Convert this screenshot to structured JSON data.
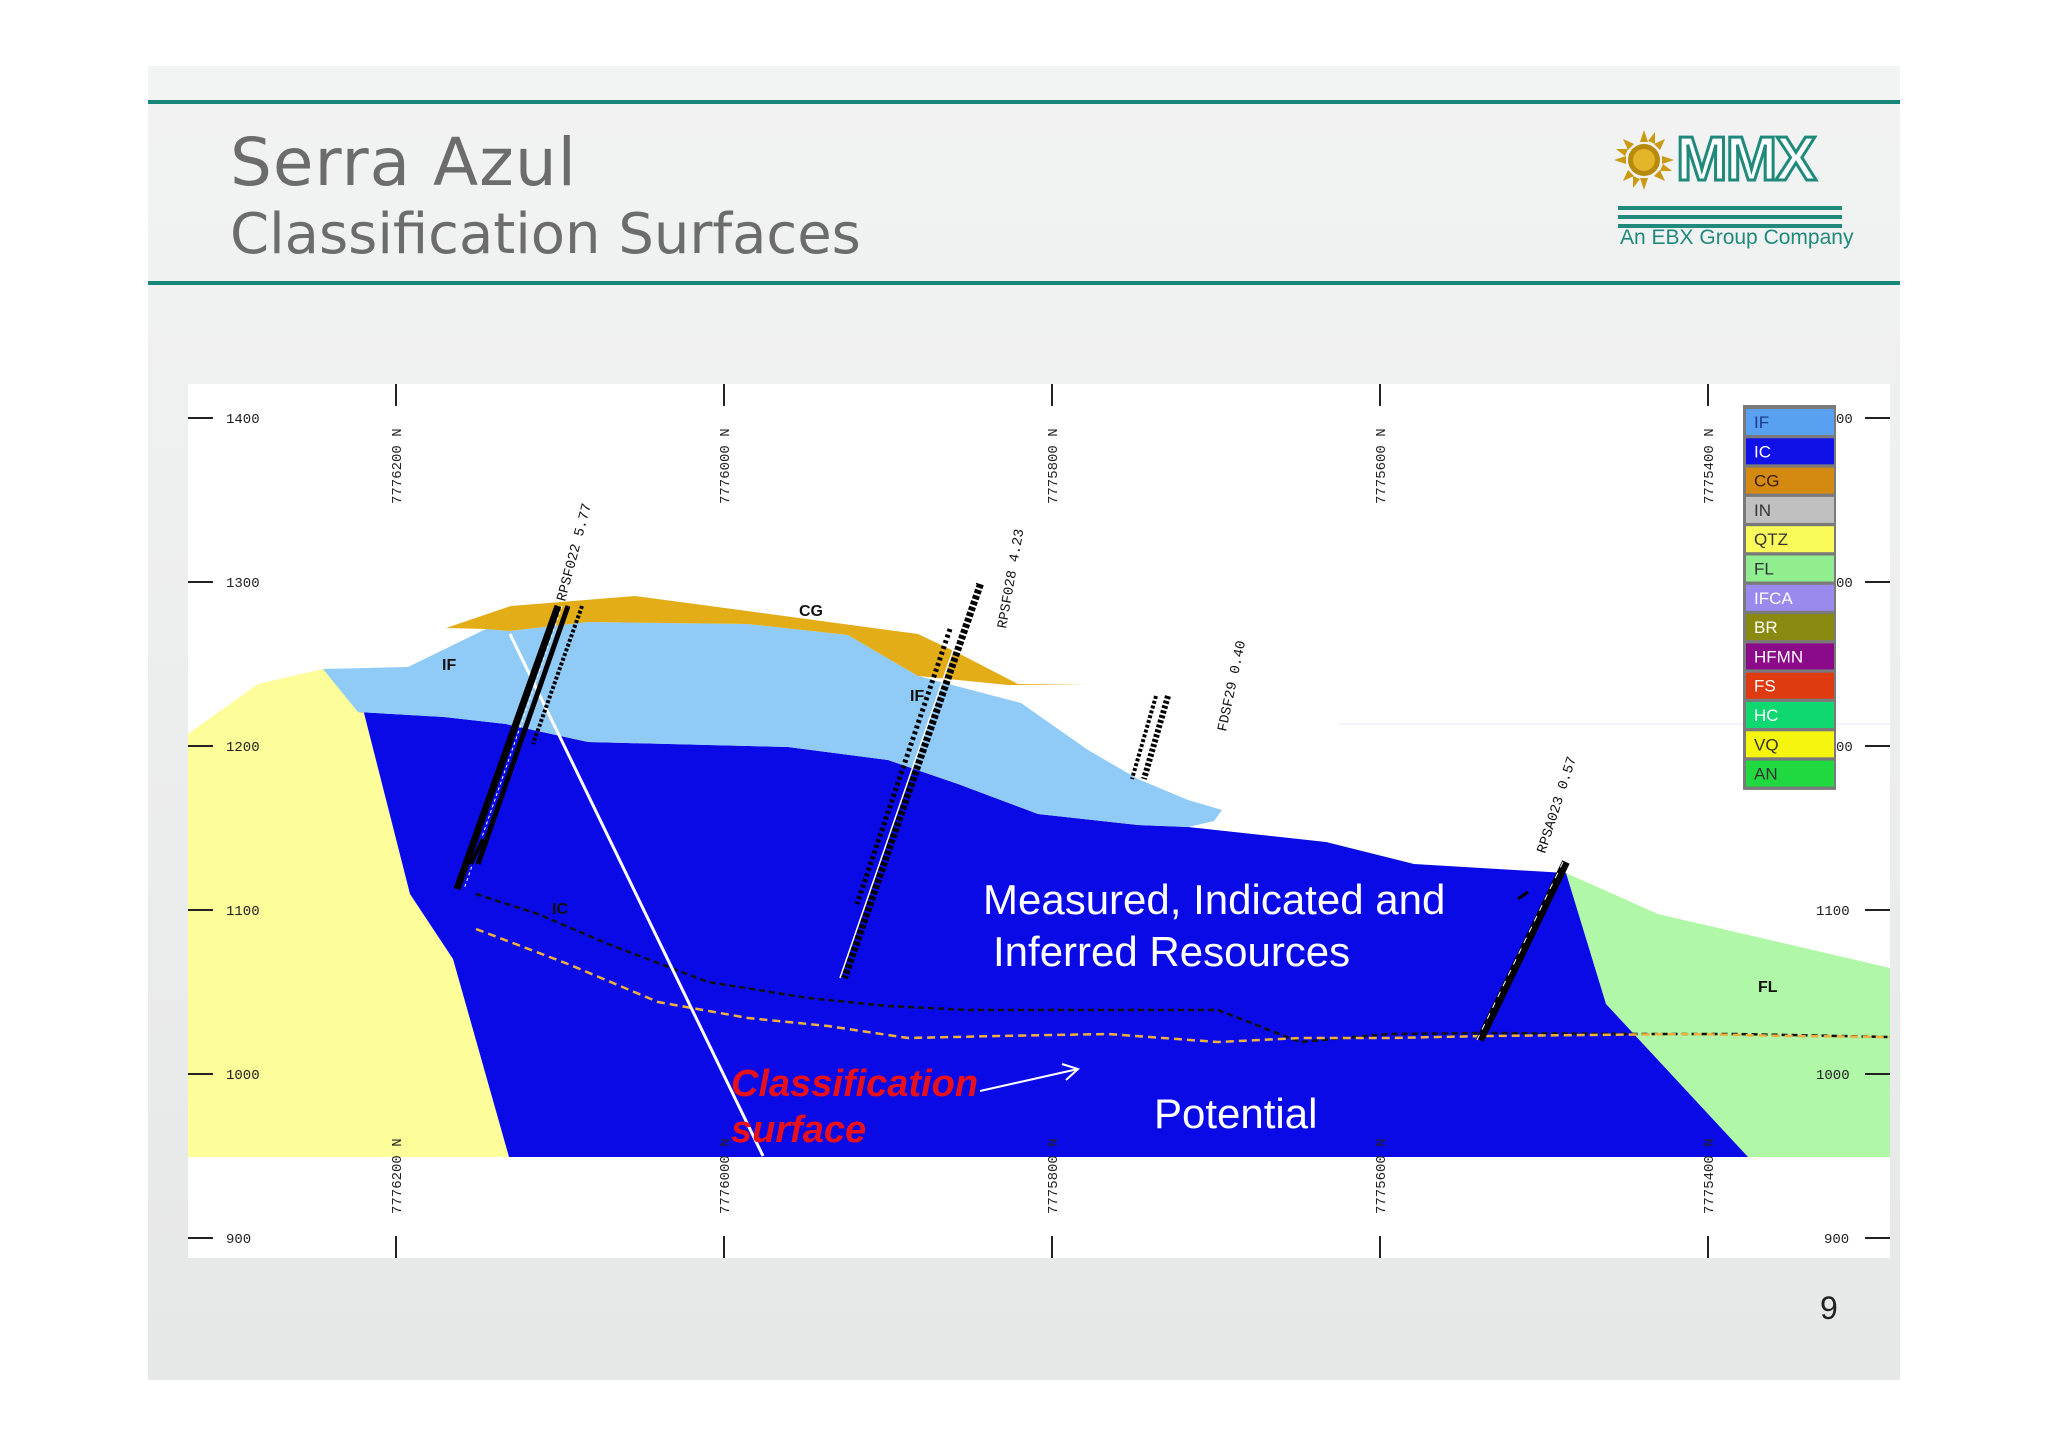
{
  "header": {
    "title": "Serra Azul",
    "subtitle": "Classification Surfaces",
    "logo_text": "MMX",
    "logo_tagline": "An EBX Group Company"
  },
  "page_number": "9",
  "section": {
    "elevation_labels_left": [
      "1400",
      "1300",
      "1200",
      "1100",
      "1000",
      "900"
    ],
    "elevation_labels_right": [
      "00",
      "00",
      "00",
      "1100",
      "1000",
      "900"
    ],
    "northing_labels": [
      "7776200 N",
      "7776000 N",
      "7775800 N",
      "7775600 N",
      "7775400 N"
    ],
    "unit_labels": [
      {
        "id": "if-left",
        "text": "IF"
      },
      {
        "id": "if-center",
        "text": "IF"
      },
      {
        "id": "cg",
        "text": "CG"
      },
      {
        "id": "ic",
        "text": "IC"
      },
      {
        "id": "fl",
        "text": "FL"
      }
    ],
    "drillholes": [
      {
        "id": "rpsf22",
        "label": "RPSF022 5.77"
      },
      {
        "id": "rpsf28",
        "label": "RPSF028 4.23"
      },
      {
        "id": "fdsf29",
        "label": "FDSF29 0.40"
      },
      {
        "id": "rpsa023",
        "label": "RPSA023 0.57"
      }
    ],
    "annotation_resources": [
      "Measured, Indicated and",
      "Inferred Resources"
    ],
    "annotation_potential": "Potential",
    "annotation_classification": [
      "Classification",
      "surface"
    ]
  },
  "legend": {
    "items": [
      {
        "code": "IF",
        "color": "#5aa0f0",
        "text_color": "#1a3a8a"
      },
      {
        "code": "IC",
        "color": "#1010e8",
        "text_color": "#ffffff"
      },
      {
        "code": "CG",
        "color": "#d48a10",
        "text_color": "#3a2000"
      },
      {
        "code": "IN",
        "color": "#c0c0c0",
        "text_color": "#333333"
      },
      {
        "code": "QTZ",
        "color": "#fafa5a",
        "text_color": "#333333"
      },
      {
        "code": "FL",
        "color": "#90ee90",
        "text_color": "#333333"
      },
      {
        "code": "IFCA",
        "color": "#9a8aee",
        "text_color": "#ffffff"
      },
      {
        "code": "BR",
        "color": "#8a8a10",
        "text_color": "#ffffff"
      },
      {
        "code": "HFMN",
        "color": "#8a0a8a",
        "text_color": "#ffffff"
      },
      {
        "code": "FS",
        "color": "#e03a10",
        "text_color": "#ffffff"
      },
      {
        "code": "HC",
        "color": "#10d870",
        "text_color": "#ffffff"
      },
      {
        "code": "VQ",
        "color": "#f5f510",
        "text_color": "#333333"
      },
      {
        "code": "AN",
        "color": "#20d840",
        "text_color": "#333333"
      }
    ]
  },
  "colors": {
    "rule": "#17877a",
    "if_unit": "#90caf7",
    "ic_unit": "#0a0ae6",
    "cg_unit": "#e3ad17",
    "footwall_yellow": "#fdfd99",
    "fl_unit": "#b0f7a8",
    "classification_red": "#e8101a"
  }
}
